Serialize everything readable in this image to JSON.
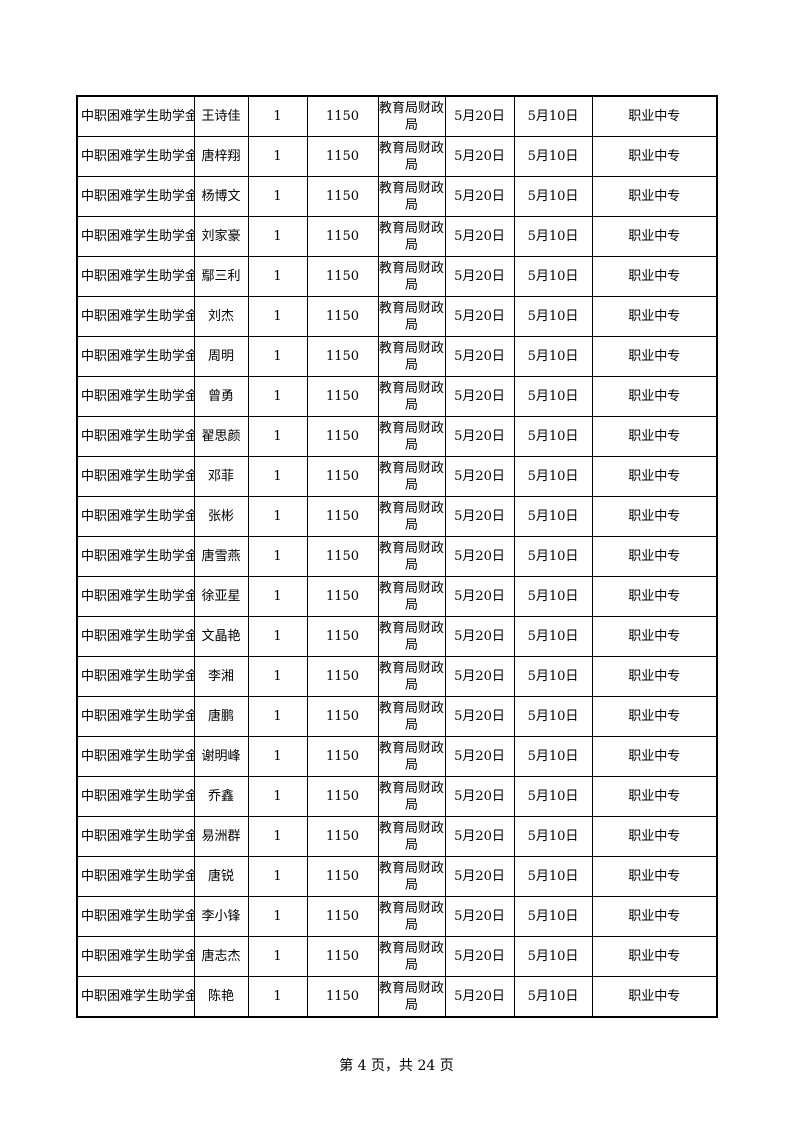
{
  "table": {
    "program": "中职困难学生助学金",
    "count": "1",
    "amount": "1150",
    "department": "教育局财政局",
    "date1": "5月20日",
    "date2": "5月10日",
    "school": "职业中专",
    "names": [
      "王诗佳",
      "唐梓翔",
      "杨博文",
      "刘家豪",
      "鄢三利",
      "刘杰",
      "周明",
      "曾勇",
      "翟思颜",
      "邓菲",
      "张彬",
      "唐雪燕",
      "徐亚星",
      "文晶艳",
      "李湘",
      "唐鹏",
      "谢明峰",
      "乔鑫",
      "易洲群",
      "唐锐",
      "李小锋",
      "唐志杰",
      "陈艳"
    ]
  },
  "footer": {
    "page_label": "第 4 页，共 24 页"
  }
}
